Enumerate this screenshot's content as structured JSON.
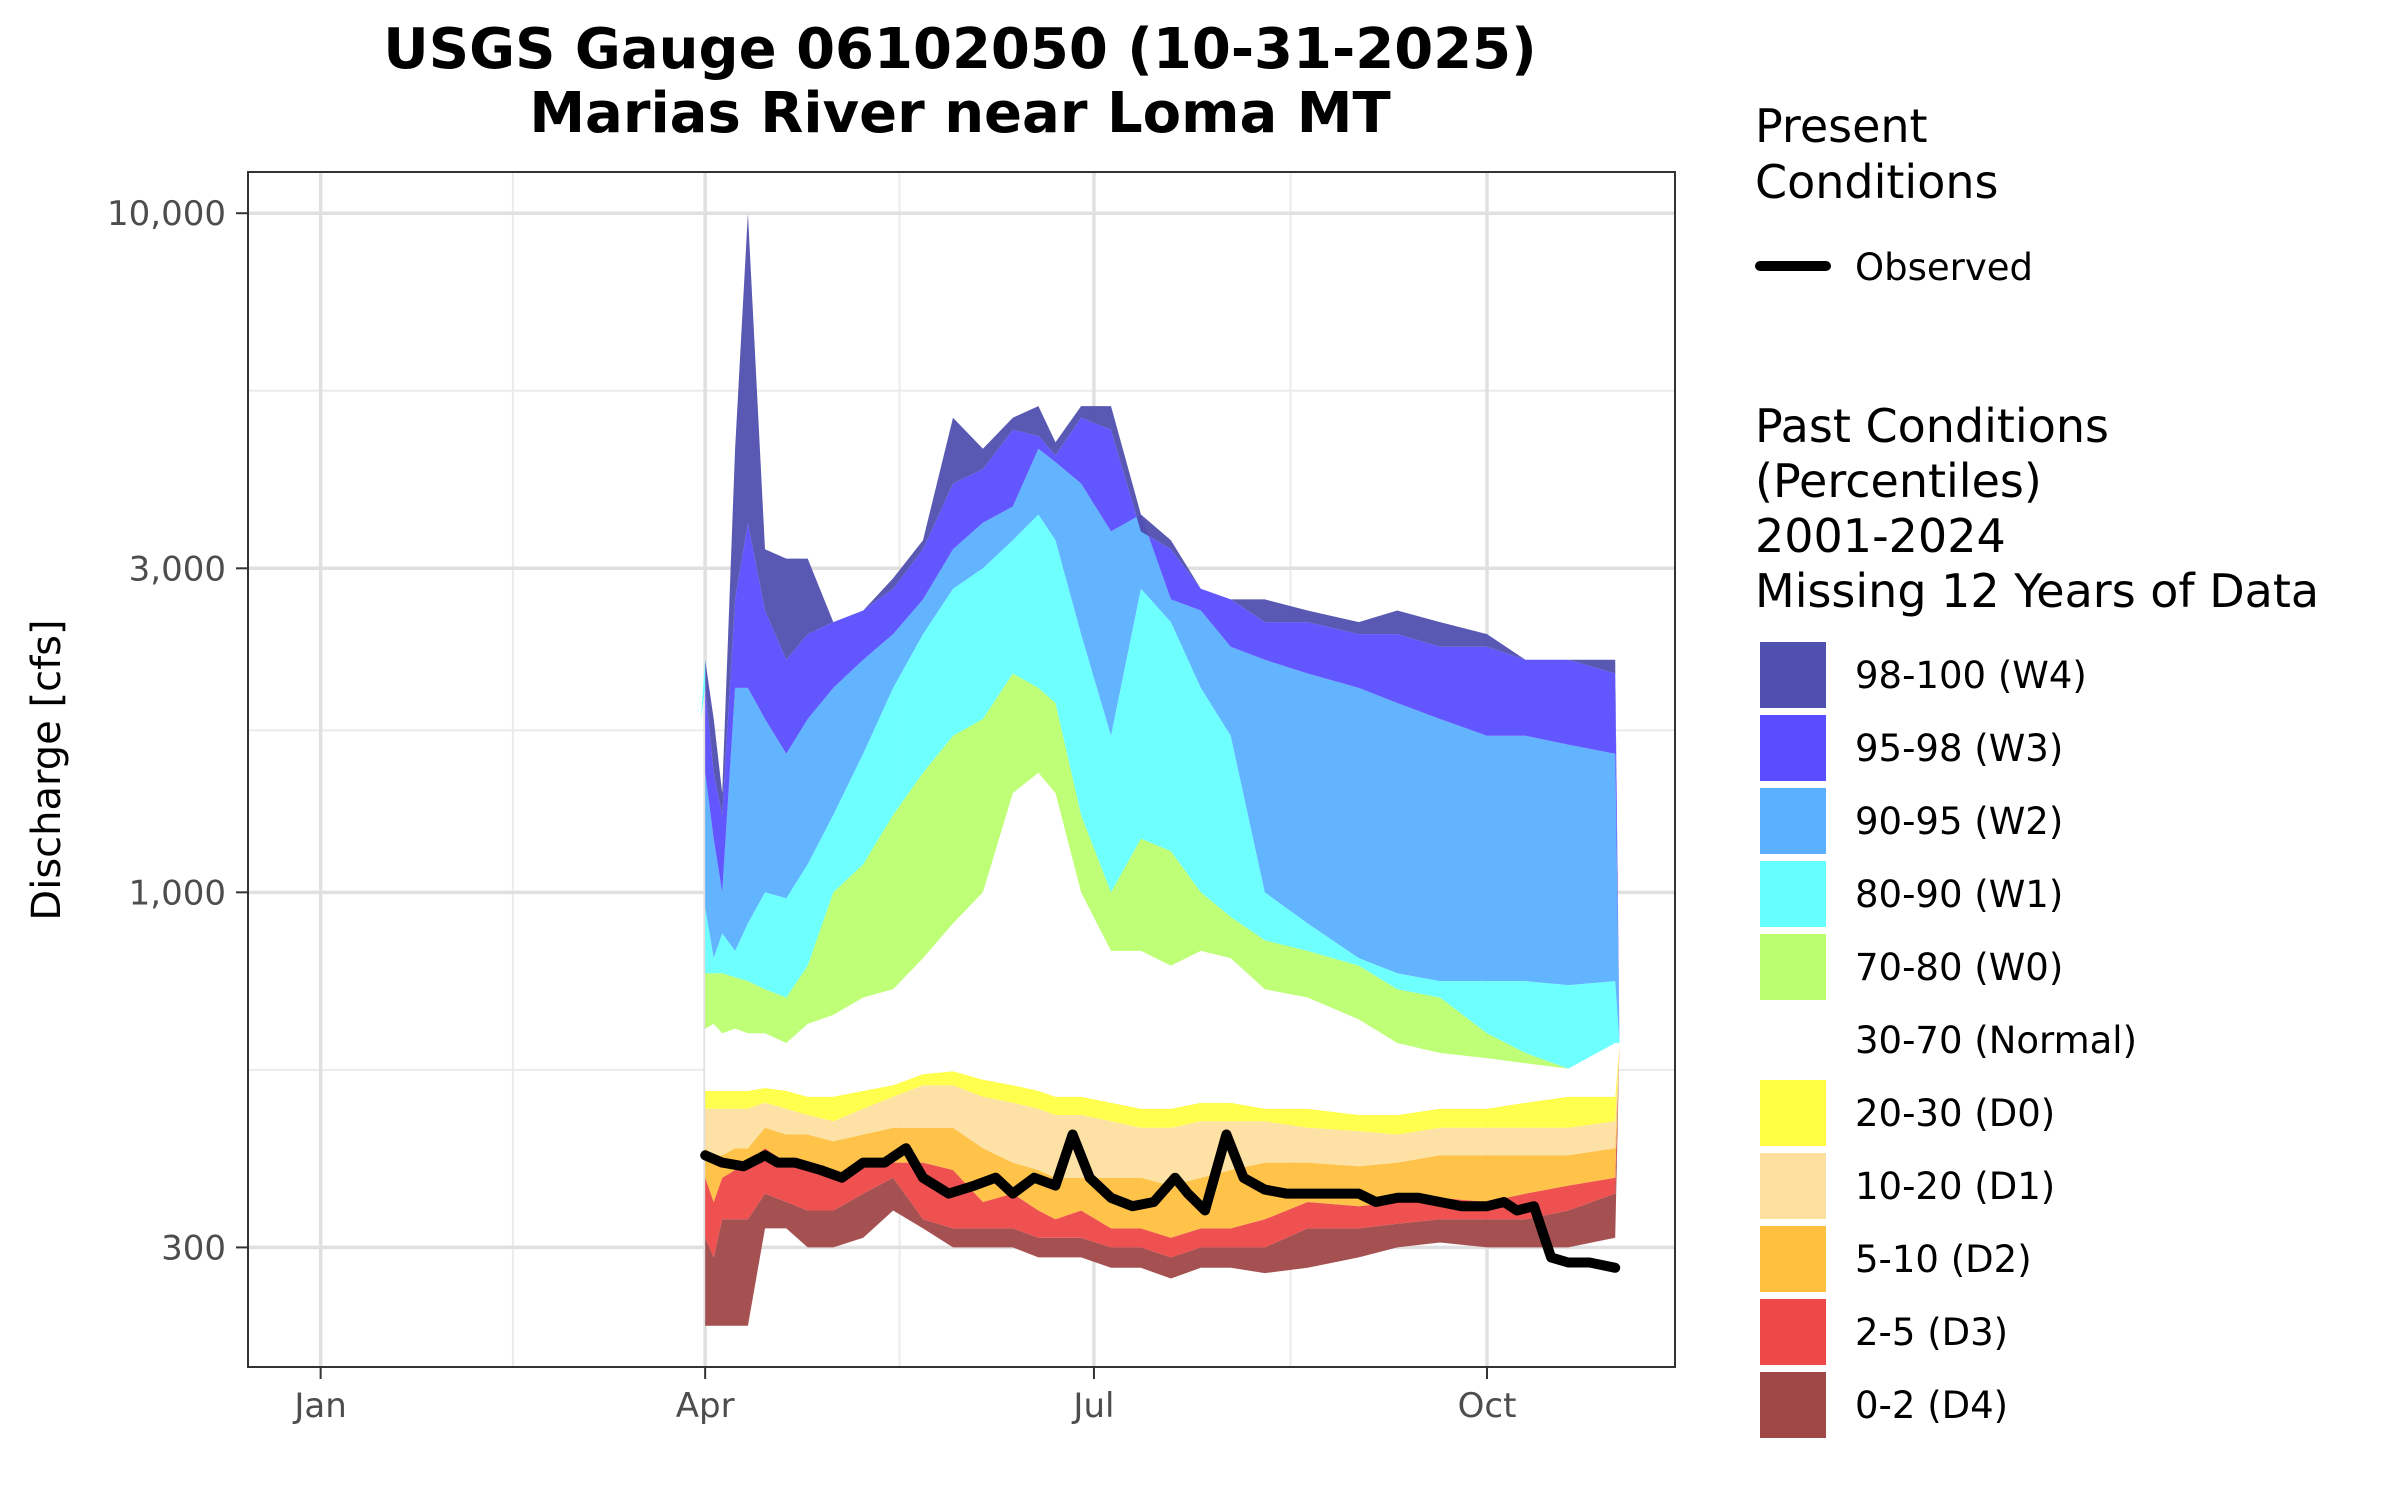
{
  "chart_data": {
    "type": "area",
    "title": [
      "USGS Gauge 06102050 (10-31-2025)",
      "Marias River near Loma MT"
    ],
    "ylabel": "Discharge [cfs]",
    "xlabel": "",
    "y_scale": "log",
    "ylim": [
      200,
      11500
    ],
    "xlim": [
      "2025-12-15",
      "2026-11-14"
    ],
    "x_ticks": [
      {
        "date": "2026-01-01",
        "label": "Jan"
      },
      {
        "date": "2026-04-01",
        "label": "Apr"
      },
      {
        "date": "2026-07-01",
        "label": "Jul"
      },
      {
        "date": "2026-10-01",
        "label": "Oct"
      }
    ],
    "y_ticks": [
      {
        "value": 300,
        "label": "300"
      },
      {
        "value": 1000,
        "label": "1,000"
      },
      {
        "value": 3000,
        "label": "3,000"
      },
      {
        "value": 10000,
        "label": "10,000"
      }
    ],
    "grid": true,
    "legend_placement": "right",
    "legend_present": {
      "title": [
        "Present",
        "Conditions"
      ],
      "items": [
        {
          "label": "Observed",
          "color": "#000000"
        }
      ]
    },
    "legend_past": {
      "title": [
        "Past Conditions",
        "(Percentiles)",
        "2001-2024",
        "Missing 12 Years of Data"
      ],
      "items": [
        {
          "label": "98-100 (W4)",
          "color": "#5050b0"
        },
        {
          "label": "95-98 (W3)",
          "color": "#5a4dff"
        },
        {
          "label": "90-95 (W2)",
          "color": "#5ab0ff"
        },
        {
          "label": "80-90 (W1)",
          "color": "#66ffff"
        },
        {
          "label": "70-80 (W0)",
          "color": "#bbff70"
        },
        {
          "label": "30-70 (Normal)",
          "color": "#ffffff"
        },
        {
          "label": "20-30 (D0)",
          "color": "#ffff44"
        },
        {
          "label": "10-20 (D1)",
          "color": "#fddfa0"
        },
        {
          "label": "5-10 (D2)",
          "color": "#ffc040"
        },
        {
          "label": "2-5 (D3)",
          "color": "#ee4848"
        },
        {
          "label": "0-2 (D4)",
          "color": "#a04848"
        }
      ]
    },
    "x_dates": [
      "2026-03-31",
      "2026-04-01",
      "2026-04-03",
      "2026-04-05",
      "2026-04-08",
      "2026-04-11",
      "2026-04-15",
      "2026-04-20",
      "2026-04-25",
      "2026-05-01",
      "2026-05-08",
      "2026-05-15",
      "2026-05-22",
      "2026-05-29",
      "2026-06-05",
      "2026-06-12",
      "2026-06-18",
      "2026-06-22",
      "2026-06-28",
      "2026-07-05",
      "2026-07-12",
      "2026-07-19",
      "2026-07-26",
      "2026-08-02",
      "2026-08-10",
      "2026-08-20",
      "2026-09-01",
      "2026-09-10",
      "2026-09-20",
      "2026-10-01",
      "2026-10-10",
      "2026-10-20",
      "2026-10-31",
      "2026-11-01",
      "2026-11-03"
    ],
    "bands": {
      "p0": [
        null,
        230,
        230,
        230,
        230,
        230,
        320,
        320,
        300,
        300,
        310,
        340,
        320,
        300,
        300,
        300,
        290,
        290,
        290,
        280,
        280,
        270,
        280,
        280,
        275,
        280,
        290,
        300,
        305,
        300,
        300,
        300,
        310,
        600,
        650
      ],
      "p2": [
        null,
        310,
        290,
        330,
        330,
        330,
        360,
        350,
        340,
        340,
        360,
        380,
        330,
        320,
        320,
        320,
        310,
        310,
        310,
        300,
        300,
        290,
        300,
        300,
        300,
        320,
        320,
        325,
        330,
        330,
        330,
        340,
        360,
        600,
        650
      ],
      "p5": [
        null,
        380,
        350,
        380,
        390,
        400,
        420,
        400,
        390,
        380,
        400,
        400,
        400,
        390,
        350,
        360,
        340,
        330,
        340,
        320,
        320,
        310,
        320,
        320,
        330,
        350,
        345,
        350,
        355,
        350,
        360,
        370,
        380,
        600,
        650
      ],
      "p10": [
        null,
        420,
        410,
        410,
        420,
        420,
        450,
        440,
        440,
        430,
        440,
        450,
        450,
        450,
        420,
        400,
        390,
        380,
        380,
        380,
        380,
        370,
        380,
        390,
        400,
        400,
        395,
        400,
        410,
        410,
        410,
        410,
        420,
        600,
        650
      ],
      "p20": [
        null,
        480,
        480,
        480,
        480,
        480,
        490,
        480,
        470,
        460,
        480,
        500,
        520,
        520,
        500,
        490,
        480,
        470,
        470,
        460,
        450,
        450,
        460,
        460,
        460,
        450,
        445,
        440,
        450,
        450,
        450,
        450,
        460,
        600,
        650
      ],
      "p30": [
        null,
        510,
        510,
        510,
        510,
        510,
        515,
        510,
        500,
        500,
        510,
        520,
        540,
        545,
        530,
        520,
        510,
        500,
        500,
        490,
        480,
        480,
        490,
        490,
        480,
        480,
        470,
        470,
        480,
        480,
        490,
        500,
        500,
        600,
        650
      ],
      "p70": [
        null,
        630,
        640,
        620,
        630,
        620,
        620,
        600,
        640,
        660,
        700,
        720,
        800,
        900,
        1000,
        1400,
        1500,
        1400,
        1000,
        820,
        820,
        780,
        820,
        800,
        720,
        700,
        650,
        600,
        580,
        570,
        560,
        550,
        600,
        600,
        650
      ],
      "p80": [
        null,
        760,
        760,
        760,
        750,
        740,
        720,
        700,
        780,
        1000,
        1100,
        1300,
        1500,
        1700,
        1800,
        2100,
        2000,
        1900,
        1300,
        1000,
        1200,
        1150,
        1000,
        920,
        850,
        820,
        780,
        720,
        700,
        620,
        580,
        550,
        600,
        600,
        650
      ],
      "p90": [
        null,
        950,
        800,
        870,
        820,
        900,
        1000,
        980,
        1100,
        1300,
        1600,
        2000,
        2400,
        2800,
        3000,
        3300,
        3600,
        3300,
        2400,
        1700,
        2800,
        2500,
        2000,
        1700,
        1000,
        900,
        800,
        760,
        740,
        740,
        740,
        730,
        740,
        600,
        650
      ],
      "p95": [
        null,
        1500,
        1200,
        1000,
        2000,
        2000,
        1800,
        1600,
        1800,
        2000,
        2200,
        2400,
        2700,
        3200,
        3500,
        3700,
        4500,
        4300,
        4000,
        3400,
        3600,
        2700,
        2600,
        2300,
        2200,
        2100,
        2000,
        1900,
        1800,
        1700,
        1700,
        1650,
        1600,
        600,
        650
      ],
      "p98": [
        null,
        2000,
        1500,
        1300,
        2700,
        3500,
        2600,
        2200,
        2400,
        2500,
        2600,
        2800,
        3200,
        4000,
        4200,
        4800,
        4700,
        4400,
        5000,
        4800,
        3400,
        3200,
        2800,
        2700,
        2500,
        2500,
        2400,
        2400,
        2300,
        2300,
        2200,
        2200,
        2100,
        600,
        650
      ],
      "p100": [
        1800,
        2200,
        1800,
        1400,
        4500,
        10000,
        3200,
        3100,
        3100,
        2500,
        2600,
        2900,
        3300,
        5000,
        4500,
        5000,
        5200,
        4600,
        5200,
        5200,
        3600,
        3300,
        2800,
        2700,
        2700,
        2600,
        2500,
        2600,
        2500,
        2400,
        2200,
        2200,
        2200,
        600,
        650
      ]
    },
    "observed": {
      "x": [
        "2026-04-01",
        "2026-04-05",
        "2026-04-10",
        "2026-04-15",
        "2026-04-18",
        "2026-04-22",
        "2026-04-28",
        "2026-05-03",
        "2026-05-08",
        "2026-05-13",
        "2026-05-18",
        "2026-05-22",
        "2026-05-28",
        "2026-06-03",
        "2026-06-08",
        "2026-06-12",
        "2026-06-17",
        "2026-06-22",
        "2026-06-26",
        "2026-06-30",
        "2026-07-05",
        "2026-07-10",
        "2026-07-15",
        "2026-07-20",
        "2026-07-23",
        "2026-07-27",
        "2026-08-01",
        "2026-08-05",
        "2026-08-10",
        "2026-08-15",
        "2026-08-20",
        "2026-08-25",
        "2026-09-01",
        "2026-09-05",
        "2026-09-10",
        "2026-09-15",
        "2026-09-20",
        "2026-09-25",
        "2026-10-01",
        "2026-10-05",
        "2026-10-08",
        "2026-10-12",
        "2026-10-16",
        "2026-10-20",
        "2026-10-25",
        "2026-10-31"
      ],
      "y": [
        410,
        400,
        395,
        410,
        400,
        400,
        390,
        380,
        400,
        400,
        420,
        380,
        360,
        370,
        380,
        360,
        380,
        370,
        440,
        380,
        355,
        345,
        350,
        380,
        360,
        340,
        440,
        380,
        365,
        360,
        360,
        360,
        360,
        350,
        355,
        355,
        350,
        345,
        345,
        350,
        340,
        345,
        290,
        285,
        285,
        280
      ]
    }
  }
}
